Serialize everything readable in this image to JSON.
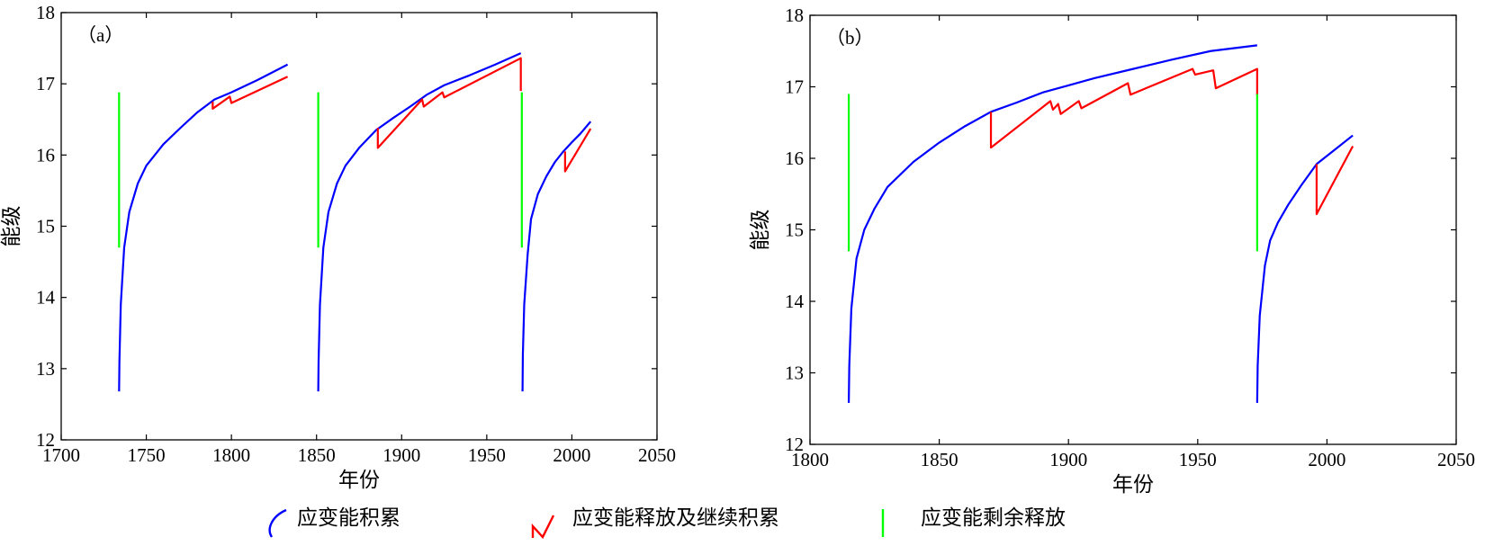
{
  "colors": {
    "accumulate": "#0000ff",
    "release": "#ff0000",
    "residual": "#00ff00"
  },
  "legend": {
    "items": [
      {
        "key": "accumulate",
        "label": "应变能积累",
        "icon": "blue-curve-icon"
      },
      {
        "key": "release",
        "label": "应变能释放及继续积累",
        "icon": "red-zigzag-icon"
      },
      {
        "key": "residual",
        "label": "应变能剩余释放",
        "icon": "green-vertical-line-icon"
      }
    ]
  },
  "chart_data": [
    {
      "type": "line",
      "panel_tag": "（a）",
      "xlabel": "年份",
      "ylabel": "能级",
      "xlim": [
        1700,
        2050
      ],
      "ylim": [
        12,
        18
      ],
      "xticks": [
        1700,
        1750,
        1800,
        1850,
        1900,
        1950,
        2000,
        2050
      ],
      "yticks": [
        12,
        13,
        14,
        15,
        16,
        17,
        18
      ],
      "series": [
        {
          "key": "accumulate",
          "segments": [
            [
              [
                1734,
                12.68
              ],
              [
                1734.2,
                13.1
              ],
              [
                1735,
                13.9
              ],
              [
                1737,
                14.7
              ],
              [
                1740,
                15.2
              ],
              [
                1745,
                15.6
              ],
              [
                1750,
                15.85
              ],
              [
                1760,
                16.15
              ],
              [
                1770,
                16.38
              ],
              [
                1780,
                16.6
              ],
              [
                1790,
                16.78
              ],
              [
                1800,
                16.88
              ],
              [
                1815,
                17.05
              ],
              [
                1833,
                17.27
              ]
            ],
            [
              [
                1851,
                12.68
              ],
              [
                1851.2,
                13.1
              ],
              [
                1852,
                13.9
              ],
              [
                1854,
                14.7
              ],
              [
                1857,
                15.2
              ],
              [
                1862,
                15.6
              ],
              [
                1867,
                15.85
              ],
              [
                1875,
                16.1
              ],
              [
                1885,
                16.35
              ],
              [
                1895,
                16.52
              ],
              [
                1905,
                16.68
              ],
              [
                1915,
                16.85
              ],
              [
                1925,
                16.98
              ],
              [
                1940,
                17.12
              ],
              [
                1955,
                17.27
              ],
              [
                1970,
                17.43
              ]
            ],
            [
              [
                1971,
                12.68
              ],
              [
                1971.2,
                13.2
              ],
              [
                1972,
                13.9
              ],
              [
                1974,
                14.6
              ],
              [
                1976,
                15.1
              ],
              [
                1980,
                15.45
              ],
              [
                1985,
                15.7
              ],
              [
                1990,
                15.9
              ],
              [
                1995,
                16.05
              ],
              [
                2000,
                16.18
              ],
              [
                2005,
                16.3
              ],
              [
                2011,
                16.47
              ]
            ]
          ]
        },
        {
          "key": "release",
          "segments": [
            [
              [
                1789,
                16.75
              ],
              [
                1789,
                16.65
              ],
              [
                1799,
                16.82
              ],
              [
                1800,
                16.73
              ],
              [
                1833,
                17.1
              ]
            ],
            [
              [
                1886,
                16.38
              ],
              [
                1886,
                16.1
              ],
              [
                1912,
                16.78
              ],
              [
                1913,
                16.68
              ],
              [
                1924,
                16.88
              ],
              [
                1925,
                16.81
              ],
              [
                1970,
                17.36
              ],
              [
                1970,
                16.9
              ]
            ],
            [
              [
                1996,
                16.05
              ],
              [
                1996,
                15.77
              ],
              [
                2011,
                16.37
              ]
            ]
          ]
        },
        {
          "key": "residual",
          "segments": [
            [
              [
                1734,
                16.88
              ],
              [
                1734,
                14.7
              ]
            ],
            [
              [
                1851,
                16.88
              ],
              [
                1851,
                14.7
              ]
            ],
            [
              [
                1970.6,
                16.88
              ],
              [
                1970.6,
                14.7
              ]
            ]
          ]
        }
      ]
    },
    {
      "type": "line",
      "panel_tag": "（b）",
      "xlabel": "年份",
      "ylabel": "能级",
      "xlim": [
        1800,
        2050
      ],
      "ylim": [
        12,
        18
      ],
      "xticks": [
        1800,
        1850,
        1900,
        1950,
        2000,
        2050
      ],
      "yticks": [
        12,
        13,
        14,
        15,
        16,
        17,
        18
      ],
      "series": [
        {
          "key": "accumulate",
          "segments": [
            [
              [
                1815,
                12.58
              ],
              [
                1815.2,
                13.1
              ],
              [
                1816,
                13.9
              ],
              [
                1818,
                14.6
              ],
              [
                1821,
                15.0
              ],
              [
                1825,
                15.3
              ],
              [
                1830,
                15.6
              ],
              [
                1840,
                15.95
              ],
              [
                1850,
                16.22
              ],
              [
                1860,
                16.45
              ],
              [
                1870,
                16.65
              ],
              [
                1880,
                16.78
              ],
              [
                1890,
                16.92
              ],
              [
                1900,
                17.02
              ],
              [
                1910,
                17.12
              ],
              [
                1925,
                17.25
              ],
              [
                1940,
                17.38
              ],
              [
                1955,
                17.5
              ],
              [
                1973,
                17.58
              ]
            ],
            [
              [
                1973,
                12.58
              ],
              [
                1973.2,
                13.1
              ],
              [
                1974,
                13.8
              ],
              [
                1976,
                14.5
              ],
              [
                1978,
                14.85
              ],
              [
                1981,
                15.1
              ],
              [
                1985,
                15.35
              ],
              [
                1990,
                15.62
              ],
              [
                1996,
                15.92
              ],
              [
                2003,
                16.12
              ],
              [
                2010,
                16.32
              ]
            ]
          ]
        },
        {
          "key": "release",
          "segments": [
            [
              [
                1870,
                16.65
              ],
              [
                1870,
                16.15
              ],
              [
                1893,
                16.8
              ],
              [
                1894,
                16.68
              ],
              [
                1896,
                16.76
              ],
              [
                1897,
                16.62
              ],
              [
                1904,
                16.8
              ],
              [
                1905,
                16.7
              ],
              [
                1923,
                17.05
              ],
              [
                1924,
                16.89
              ],
              [
                1948,
                17.25
              ],
              [
                1949,
                17.17
              ],
              [
                1956,
                17.23
              ],
              [
                1957,
                16.98
              ],
              [
                1973,
                17.25
              ],
              [
                1973,
                16.88
              ]
            ],
            [
              [
                1996,
                15.92
              ],
              [
                1996,
                15.22
              ],
              [
                2010,
                16.17
              ]
            ]
          ]
        },
        {
          "key": "residual",
          "segments": [
            [
              [
                1815,
                16.9
              ],
              [
                1815,
                14.7
              ]
            ],
            [
              [
                1973,
                16.9
              ],
              [
                1973,
                14.7
              ]
            ]
          ]
        }
      ]
    }
  ]
}
